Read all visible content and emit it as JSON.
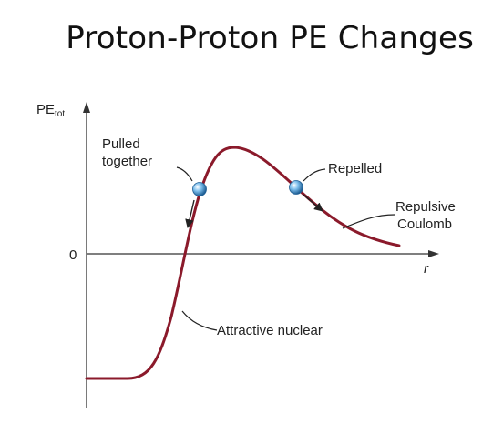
{
  "title": "Proton-Proton PE Changes",
  "diagram": {
    "y_axis_label_main": "PE",
    "y_axis_label_sub": "tot",
    "x_axis_label": "r",
    "zero_label": "0",
    "annotations": {
      "pulled_line1": "Pulled",
      "pulled_line2": "together",
      "repelled": "Repelled",
      "repulsive_line1": "Repulsive",
      "repulsive_line2": "Coulomb",
      "attractive": "Attractive nuclear"
    },
    "colors": {
      "curve": "#8b1a2b",
      "axis": "#333333",
      "proton": "#3a8fd0"
    }
  }
}
